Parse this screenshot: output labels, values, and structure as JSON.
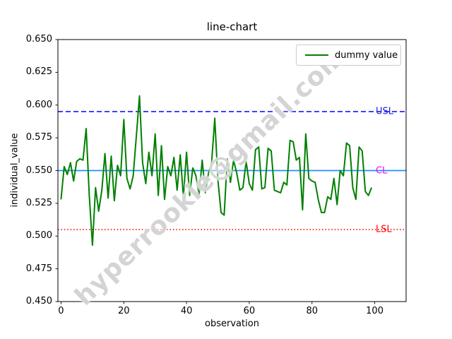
{
  "title": "line-chart",
  "watermark": "hyperrookie@gmail.com",
  "legend": {
    "label": "dummy value",
    "line_color": "#008000"
  },
  "annotations": {
    "usl": {
      "label": "USL",
      "value": 0.595,
      "label_color": "#2222dd",
      "line_color": "#0000ff",
      "line_style": "dashed"
    },
    "cl": {
      "label": "CL",
      "value": 0.55,
      "label_color": "#ff00ff",
      "line_color": "#1e90ff",
      "line_style": "solid"
    },
    "lsl": {
      "label": "LSL",
      "value": 0.505,
      "label_color": "#ff0000",
      "line_color": "#ff0000",
      "line_style": "dotted"
    }
  },
  "chart_data": {
    "type": "line",
    "title": "line-chart",
    "xlabel": "observation",
    "ylabel": "individual_value",
    "xlim": [
      -1,
      110
    ],
    "ylim": [
      0.45,
      0.65
    ],
    "xticks": [
      0,
      20,
      40,
      60,
      80,
      100
    ],
    "yticks": [
      0.45,
      0.475,
      0.5,
      0.525,
      0.55,
      0.575,
      0.6,
      0.625,
      0.65
    ],
    "grid": false,
    "legend_position": "upper right",
    "reference_lines": [
      {
        "name": "USL",
        "value": 0.595,
        "color": "#0000ff",
        "style": "dashed"
      },
      {
        "name": "CL",
        "value": 0.55,
        "color": "#1e90ff",
        "style": "solid"
      },
      {
        "name": "LSL",
        "value": 0.505,
        "color": "#ff0000",
        "style": "dotted"
      }
    ],
    "series": [
      {
        "name": "dummy value",
        "color": "#008000",
        "x_start": 0,
        "values": [
          0.528,
          0.553,
          0.547,
          0.556,
          0.542,
          0.557,
          0.559,
          0.558,
          0.582,
          0.531,
          0.493,
          0.537,
          0.519,
          0.535,
          0.563,
          0.529,
          0.561,
          0.527,
          0.554,
          0.546,
          0.589,
          0.544,
          0.536,
          0.546,
          0.576,
          0.607,
          0.556,
          0.54,
          0.564,
          0.546,
          0.578,
          0.531,
          0.569,
          0.528,
          0.553,
          0.546,
          0.56,
          0.535,
          0.562,
          0.53,
          0.564,
          0.531,
          0.552,
          0.546,
          0.531,
          0.558,
          0.533,
          0.548,
          0.556,
          0.59,
          0.543,
          0.518,
          0.516,
          0.559,
          0.541,
          0.558,
          0.548,
          0.535,
          0.537,
          0.557,
          0.54,
          0.535,
          0.566,
          0.568,
          0.536,
          0.537,
          0.567,
          0.565,
          0.535,
          0.534,
          0.533,
          0.541,
          0.539,
          0.573,
          0.572,
          0.558,
          0.56,
          0.52,
          0.578,
          0.544,
          0.542,
          0.541,
          0.528,
          0.518,
          0.518,
          0.53,
          0.528,
          0.544,
          0.524,
          0.55,
          0.546,
          0.571,
          0.569,
          0.537,
          0.528,
          0.568,
          0.565,
          0.534,
          0.531,
          0.537
        ]
      }
    ]
  }
}
